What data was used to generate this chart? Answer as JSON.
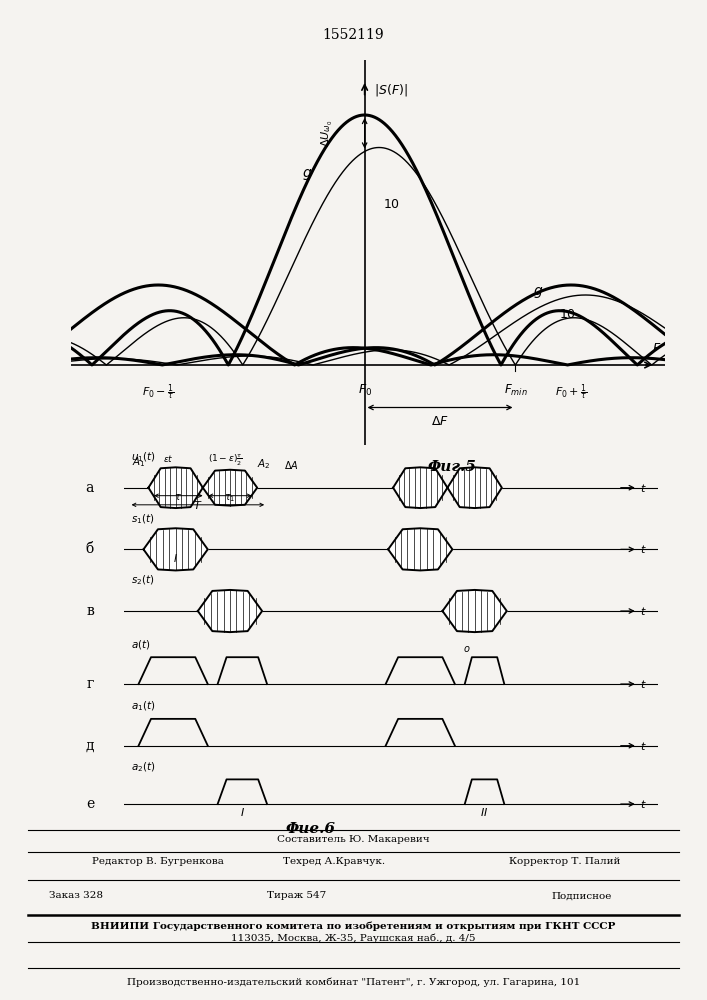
{
  "title_patent": "1552119",
  "bg_color": "#f5f3f0",
  "line_color": "#1a1a1a",
  "fig5_label": "Φиг.5",
  "fig6_label": "Φие.6",
  "bottom_text_sestavitel": "Составитель Ю. Макаревич",
  "bottom_text_editor": "Редактор В. Бугренкова",
  "bottom_text_tehred": "Техред А.Кравчук.",
  "bottom_text_korrektor": "Корректор Т. Палий",
  "bottom_zakaz": "Заказ 328",
  "bottom_tirazh": "Тираж 547",
  "bottom_podpisnoe": "Подписное",
  "bottom_vniipii": "ВНИИПИ Государственного комитета по изобретениям и открытиям при ГКНТ СССР",
  "bottom_address": "113035, Москва, Ж-35, Раушская наб., д. 4/5",
  "bottom_patent": "Производственно-издательский комбинат \"Патент\", г. Ужгород, ул. Гагарина, 101"
}
